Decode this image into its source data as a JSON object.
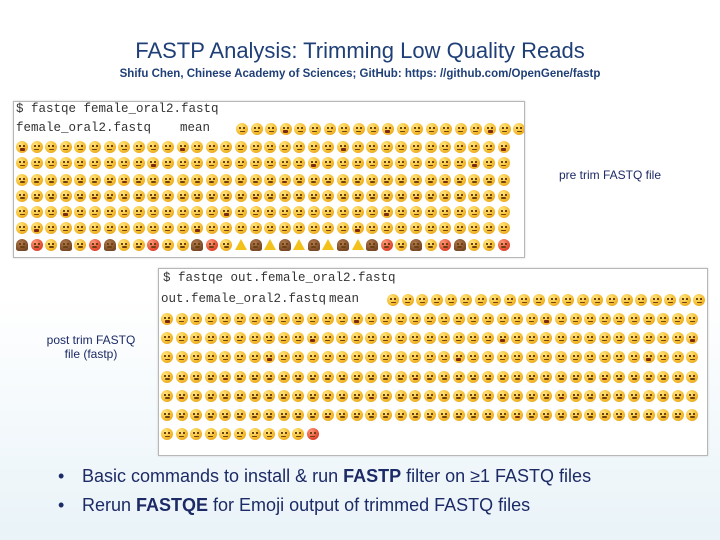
{
  "slide": {
    "title": "FASTP Analysis:  Trimming Low Quality Reads",
    "subtitle": "Shifu Chen, Chinese Academy of Sciences; GitHub: https: //github.com/OpenGene/fastp"
  },
  "pre_terminal": {
    "command": "$ fastqe female_oral2.fastq",
    "header_file": "female_oral2.fastq",
    "header_stat": "mean",
    "label": "pre trim FASTQ file"
  },
  "post_terminal": {
    "command": "$ fastqe out.female_oral2.fastq",
    "header_file": "out.female_oral2.fastq",
    "header_stat": "mean",
    "label_line1": "post trim FASTQ",
    "label_line2": "file (fastp)"
  },
  "bullets": [
    {
      "dot": "•",
      "pre": "Basic commands to install & run ",
      "bold": "FASTP",
      "post": " filter on ≥1 FASTQ files"
    },
    {
      "dot": "•",
      "pre": "Rerun ",
      "bold": "FASTQE",
      "post": " for Emoji output of trimmed FASTQ files"
    }
  ],
  "emoji": {
    "default_icon": "smiley-emoji-icon",
    "poop_icon": "poop-emoji-icon",
    "angry_icon": "angry-emoji-icon",
    "warning_icon": "warning-sign-icon"
  }
}
